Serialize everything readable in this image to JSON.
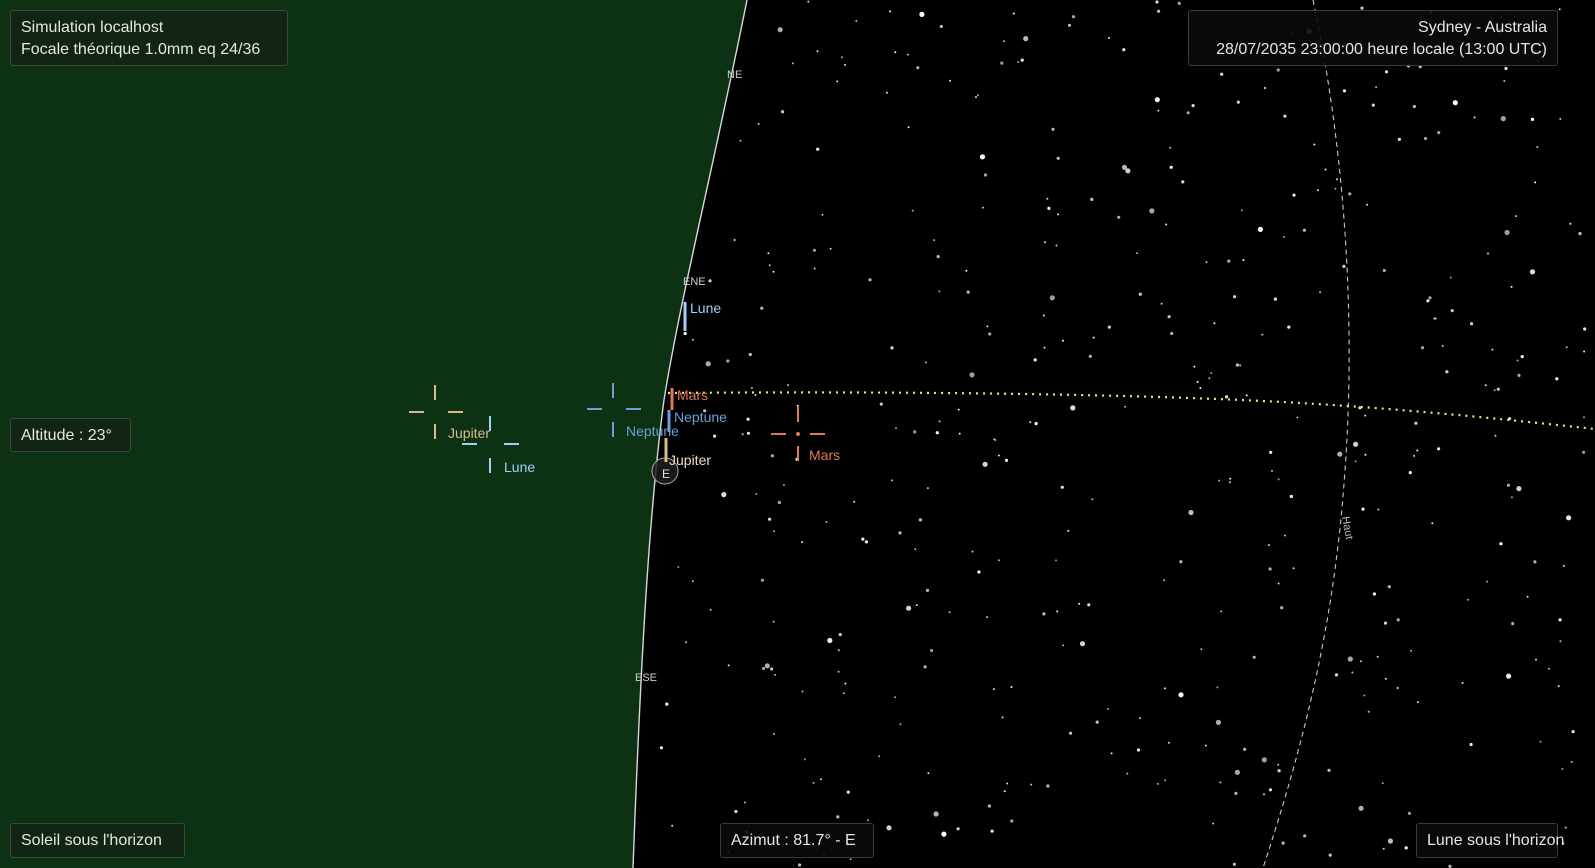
{
  "header_left": {
    "line1": "Simulation localhost",
    "line2": "Focale théorique 1.0mm eq 24/36"
  },
  "header_right": {
    "location": "Sydney - Australia",
    "datetime": "28/07/2035 23:00:00 heure locale (13:00 UTC)"
  },
  "altitude_label": "Altitude : 23°",
  "sun_status": "Soleil sous l'horizon",
  "azimuth_label": "Azimut : 81.7° - E",
  "moon_status": "Lune sous l'horizon",
  "compass": {
    "ne": "NE",
    "ene": "ENE",
    "e": "E",
    "ese": "ESE",
    "meridian": "Haut"
  },
  "markers": {
    "jupiter_reticle": "Jupiter",
    "moon_reticle": "Lune",
    "neptune_reticle": "Neptune",
    "mars_reticle": "Mars",
    "moon_horizon": "Lune",
    "mars_horizon": "Mars",
    "neptune_horizon": "Neptune",
    "jupiter_horizon": "Jupiter"
  },
  "colors": {
    "ground": "#0c3213",
    "sky": "#000000",
    "horizon": "#d8d8d8",
    "ecliptic": "#f1e58a",
    "jupiter": "#d9b98a",
    "moon": "#9fd0f6",
    "neptune": "#6e9fd8",
    "mars": "#e07a55",
    "meridian": "#c8c8c8"
  }
}
